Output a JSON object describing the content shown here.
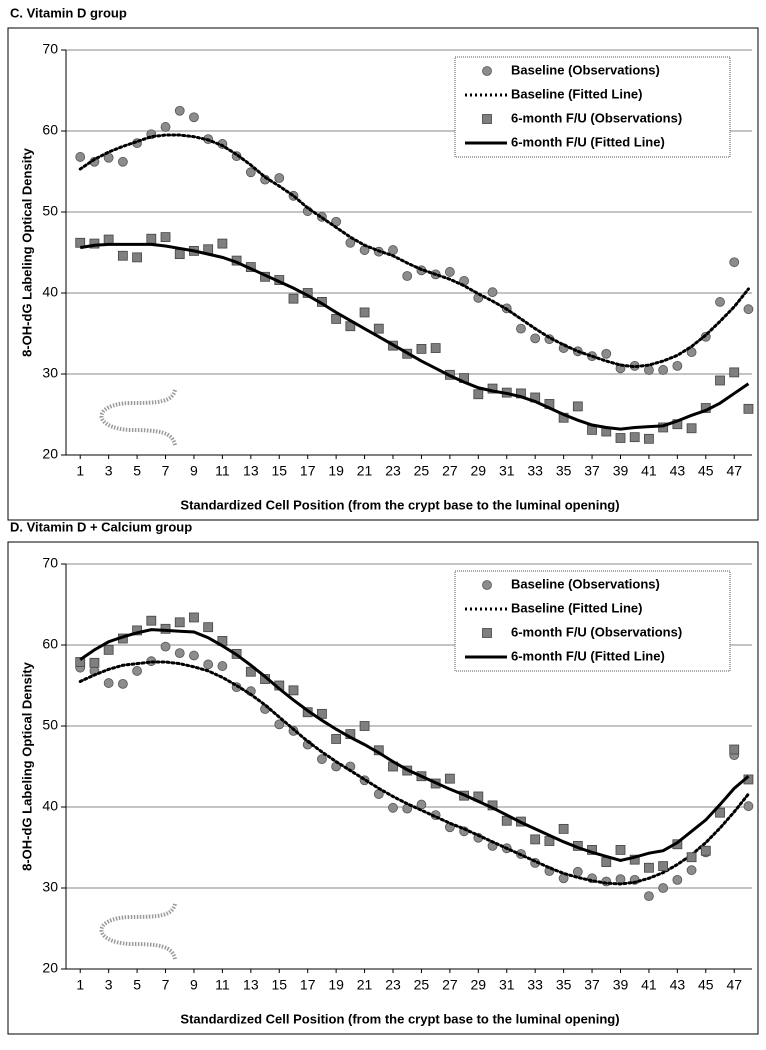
{
  "chart_data": [
    {
      "type": "line",
      "title": "C.  Vitamin D group",
      "xlabel": "Standardized Cell Position (from the crypt base to the luminal opening)",
      "ylabel": "8-OH-dG Labeling Optical Density",
      "x": [
        1,
        2,
        3,
        4,
        5,
        6,
        7,
        8,
        9,
        10,
        11,
        12,
        13,
        14,
        15,
        16,
        17,
        18,
        19,
        20,
        21,
        22,
        23,
        24,
        25,
        26,
        27,
        28,
        29,
        30,
        31,
        32,
        33,
        34,
        35,
        36,
        37,
        38,
        39,
        40,
        41,
        42,
        43,
        44,
        45,
        46,
        47,
        48
      ],
      "xlim": [
        0,
        48.25
      ],
      "xticks": [
        1,
        3,
        5,
        7,
        9,
        11,
        13,
        15,
        17,
        19,
        21,
        23,
        25,
        27,
        29,
        31,
        33,
        35,
        37,
        39,
        41,
        43,
        45,
        47
      ],
      "ylim": [
        20,
        70
      ],
      "yticks": [
        20,
        30,
        40,
        50,
        60,
        70
      ],
      "grid": true,
      "legend": "upper right",
      "series": [
        {
          "name": "Baseline (Observations)",
          "color": "#8c8c8c",
          "marker": "circle",
          "linestyle": "none",
          "values": [
            56.8,
            56.2,
            56.7,
            56.2,
            58.5,
            59.6,
            60.5,
            62.5,
            61.7,
            59.0,
            58.4,
            56.9,
            54.9,
            54.0,
            54.2,
            52.0,
            50.1,
            49.4,
            48.8,
            46.2,
            45.3,
            45.1,
            45.3,
            42.1,
            42.8,
            42.3,
            42.6,
            41.5,
            39.4,
            40.1,
            38.1,
            35.6,
            34.4,
            34.3,
            33.2,
            32.8,
            32.2,
            32.5,
            30.7,
            31.0,
            30.5,
            30.5,
            31.0,
            32.7,
            34.6,
            38.9,
            43.8,
            38.0
          ]
        },
        {
          "name": "Baseline (Fitted Line)",
          "color": "#000000",
          "marker": "none",
          "linestyle": "dotted",
          "values": [
            55.3,
            56.5,
            57.4,
            58.1,
            58.7,
            59.3,
            59.5,
            59.5,
            59.3,
            58.9,
            58.2,
            57.1,
            55.8,
            54.3,
            53.2,
            52.0,
            50.5,
            49.3,
            48.1,
            46.9,
            45.9,
            45.2,
            44.6,
            43.7,
            42.9,
            42.3,
            41.7,
            40.9,
            39.9,
            39.0,
            38.0,
            36.8,
            35.6,
            34.5,
            33.6,
            32.8,
            32.2,
            31.6,
            31.1,
            30.9,
            31.1,
            31.6,
            32.3,
            33.4,
            34.8,
            36.5,
            38.3,
            40.5
          ]
        },
        {
          "name": "6-month F/U (Observations)",
          "color": "#7f7f7f",
          "marker": "square",
          "linestyle": "none",
          "values": [
            46.2,
            46.1,
            46.6,
            44.6,
            44.4,
            46.7,
            46.9,
            44.8,
            45.2,
            45.4,
            46.1,
            44.0,
            43.2,
            42.0,
            41.6,
            39.3,
            40.0,
            38.9,
            36.8,
            35.9,
            37.6,
            35.6,
            33.5,
            32.5,
            33.1,
            33.2,
            29.9,
            29.5,
            27.5,
            28.2,
            27.7,
            27.6,
            27.1,
            26.3,
            24.6,
            26.0,
            23.1,
            22.9,
            22.1,
            22.2,
            22.0,
            23.4,
            23.8,
            23.3,
            25.8,
            29.2,
            30.2,
            25.7
          ]
        },
        {
          "name": "6-month F/U (Fitted Line)",
          "color": "#000000",
          "marker": "none",
          "linestyle": "solid",
          "values": [
            45.6,
            45.9,
            46.0,
            46.0,
            46.0,
            46.0,
            45.8,
            45.5,
            45.2,
            44.8,
            44.4,
            43.8,
            43.0,
            42.2,
            41.4,
            40.6,
            39.7,
            38.7,
            37.6,
            36.6,
            35.6,
            34.6,
            33.6,
            32.6,
            31.6,
            30.7,
            29.8,
            29.0,
            28.3,
            27.9,
            27.6,
            27.2,
            26.6,
            25.8,
            25.0,
            24.3,
            23.7,
            23.4,
            23.2,
            23.4,
            23.5,
            23.6,
            24.2,
            24.9,
            25.5,
            26.4,
            27.6,
            28.8
          ]
        }
      ]
    },
    {
      "type": "line",
      "title": "D.  Vitamin D + Calcium group",
      "xlabel": "Standardized Cell Position (from the crypt base to the luminal opening)",
      "ylabel": "8-OH-dG Labeling Optical Density",
      "x": [
        1,
        2,
        3,
        4,
        5,
        6,
        7,
        8,
        9,
        10,
        11,
        12,
        13,
        14,
        15,
        16,
        17,
        18,
        19,
        20,
        21,
        22,
        23,
        24,
        25,
        26,
        27,
        28,
        29,
        30,
        31,
        32,
        33,
        34,
        35,
        36,
        37,
        38,
        39,
        40,
        41,
        42,
        43,
        44,
        45,
        46,
        47,
        48
      ],
      "xlim": [
        0,
        48.25
      ],
      "xticks": [
        1,
        3,
        5,
        7,
        9,
        11,
        13,
        15,
        17,
        19,
        21,
        23,
        25,
        27,
        29,
        31,
        33,
        35,
        37,
        39,
        41,
        43,
        45,
        47
      ],
      "ylim": [
        20,
        70
      ],
      "yticks": [
        20,
        30,
        40,
        50,
        60,
        70
      ],
      "grid": true,
      "legend": "upper right",
      "series": [
        {
          "name": "Baseline (Observations)",
          "color": "#8c8c8c",
          "marker": "circle",
          "linestyle": "none",
          "values": [
            57.2,
            56.8,
            55.3,
            55.2,
            56.8,
            58.0,
            59.8,
            59.0,
            58.7,
            57.6,
            57.4,
            54.8,
            54.3,
            52.1,
            50.2,
            49.4,
            47.7,
            45.9,
            45.0,
            45.0,
            43.3,
            41.6,
            39.9,
            39.8,
            40.3,
            39.0,
            37.5,
            37.0,
            36.2,
            35.2,
            34.9,
            34.2,
            33.1,
            32.1,
            31.2,
            32.0,
            31.2,
            30.8,
            31.1,
            31.0,
            29.0,
            30.0,
            31.0,
            32.2,
            34.4,
            39.3,
            46.4,
            40.1
          ]
        },
        {
          "name": "Baseline (Fitted Line)",
          "color": "#000000",
          "marker": "none",
          "linestyle": "dotted",
          "values": [
            55.5,
            56.3,
            57.0,
            57.5,
            57.7,
            57.9,
            57.9,
            57.7,
            57.3,
            56.8,
            56.0,
            55.0,
            53.9,
            52.6,
            51.1,
            49.6,
            48.1,
            46.8,
            45.6,
            44.5,
            43.4,
            42.3,
            41.3,
            40.4,
            39.6,
            38.8,
            38.0,
            37.3,
            36.5,
            35.7,
            34.9,
            34.1,
            33.3,
            32.5,
            31.8,
            31.3,
            30.9,
            30.6,
            30.5,
            30.7,
            31.2,
            31.9,
            32.9,
            34.1,
            35.6,
            37.4,
            39.4,
            41.6
          ]
        },
        {
          "name": "6-month F/U (Observations)",
          "color": "#7f7f7f",
          "marker": "square",
          "linestyle": "none",
          "values": [
            57.9,
            57.8,
            59.4,
            60.8,
            61.8,
            63.0,
            62.0,
            62.8,
            63.4,
            62.2,
            60.5,
            58.9,
            56.7,
            55.8,
            55.0,
            54.4,
            51.7,
            51.5,
            48.4,
            49.0,
            50.0,
            47.0,
            45.0,
            44.5,
            43.8,
            42.9,
            43.5,
            41.4,
            41.3,
            40.2,
            38.3,
            38.2,
            36.0,
            35.8,
            37.3,
            35.2,
            34.7,
            33.2,
            34.7,
            33.5,
            32.5,
            32.7,
            35.4,
            33.8,
            34.6,
            39.3,
            47.1,
            43.4
          ]
        },
        {
          "name": "6-month F/U (Fitted Line)",
          "color": "#000000",
          "marker": "none",
          "linestyle": "solid",
          "values": [
            58.2,
            59.4,
            60.4,
            61.0,
            61.5,
            61.9,
            61.8,
            61.7,
            61.6,
            60.9,
            59.9,
            58.8,
            57.5,
            56.1,
            54.6,
            53.2,
            51.9,
            50.7,
            49.6,
            48.6,
            47.7,
            46.7,
            45.6,
            44.6,
            43.8,
            43.0,
            42.2,
            41.5,
            40.7,
            39.9,
            39.0,
            38.1,
            37.3,
            36.5,
            35.7,
            35.0,
            34.4,
            33.9,
            33.4,
            33.8,
            34.3,
            34.6,
            35.6,
            37.0,
            38.4,
            40.3,
            42.3,
            43.8
          ]
        }
      ]
    }
  ]
}
